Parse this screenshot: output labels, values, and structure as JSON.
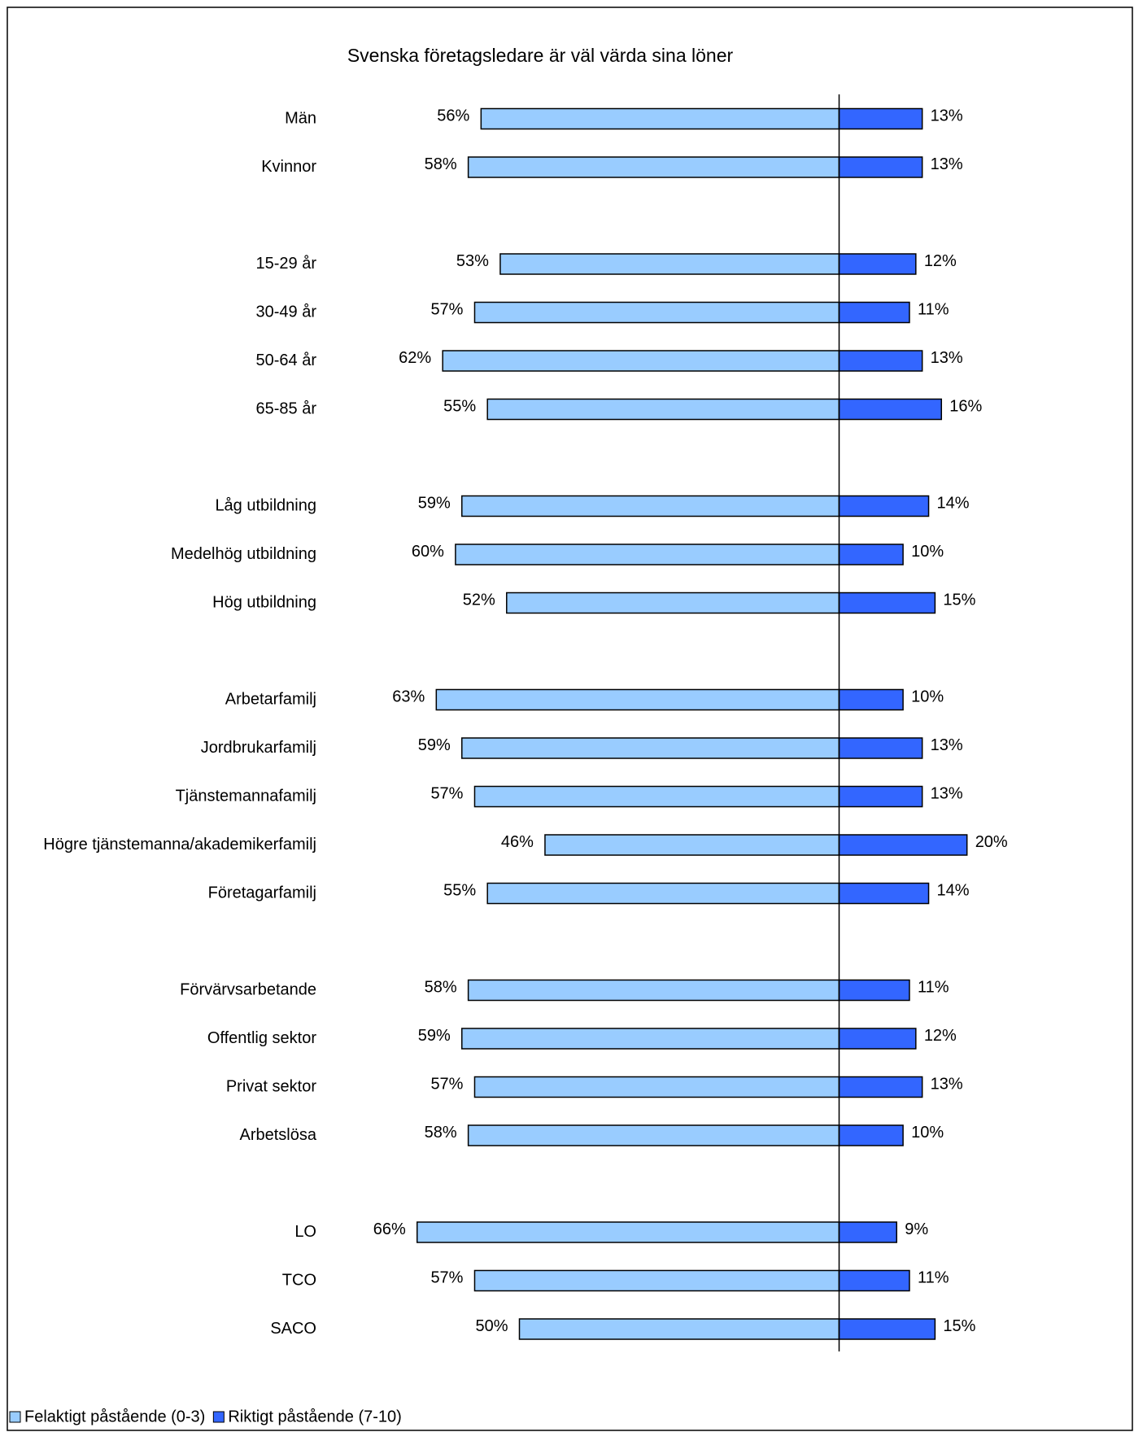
{
  "chart_data": {
    "type": "diverging-bar",
    "title": "Svenska företagsledare är väl värda sina löner",
    "categories": [
      "Män",
      "Kvinnor",
      null,
      "15-29 år",
      "30-49 år",
      "50-64 år",
      "65-85 år",
      null,
      "Låg utbildning",
      "Medelhög utbildning",
      "Hög utbildning",
      null,
      "Arbetarfamilj",
      "Jordbrukarfamilj",
      "Tjänstemannafamilj",
      "Högre tjänstemanna/akademikerfamilj",
      "Företagarfamilj",
      null,
      "Förvärvsarbetande",
      "Offentlig sektor",
      "Privat sektor",
      "Arbetslösa",
      null,
      "LO",
      "TCO",
      "SACO"
    ],
    "series": [
      {
        "name": "Felaktigt påstående (0-3)",
        "color": "#99ccff",
        "side": "left",
        "values": [
          56,
          58,
          null,
          53,
          57,
          62,
          55,
          null,
          59,
          60,
          52,
          null,
          63,
          59,
          57,
          46,
          55,
          null,
          58,
          59,
          57,
          58,
          null,
          66,
          57,
          50
        ],
        "value_labels": [
          "56%",
          "58%",
          null,
          "53%",
          "57%",
          "62%",
          "55%",
          null,
          "59%",
          "60%",
          "52%",
          null,
          "63%",
          "59%",
          "57%",
          "46%",
          "55%",
          null,
          "58%",
          "59%",
          "57%",
          "58%",
          null,
          "66%",
          "57%",
          "50%"
        ]
      },
      {
        "name": "Riktigt påstående (7-10)",
        "color": "#3366ff",
        "side": "right",
        "values": [
          13,
          13,
          null,
          12,
          11,
          13,
          16,
          null,
          14,
          10,
          15,
          null,
          10,
          13,
          13,
          20,
          14,
          null,
          11,
          12,
          13,
          10,
          null,
          9,
          11,
          15
        ],
        "value_labels": [
          "13%",
          "13%",
          null,
          "12%",
          "11%",
          "13%",
          "16%",
          null,
          "14%",
          "10%",
          "15%",
          null,
          "10%",
          "13%",
          "13%",
          "20%",
          "14%",
          null,
          "11%",
          "12%",
          "13%",
          "10%",
          null,
          "9%",
          "11%",
          "15%"
        ]
      }
    ],
    "legend": "bottom-left"
  }
}
